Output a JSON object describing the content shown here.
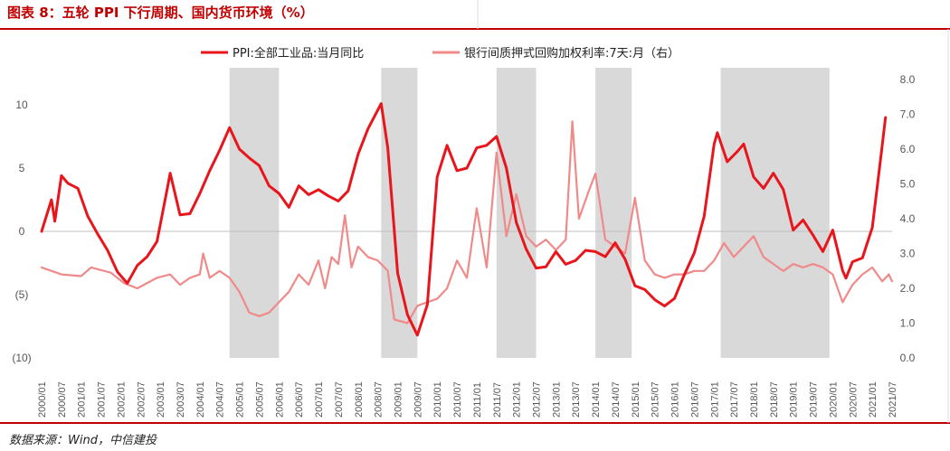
{
  "header": {
    "title": "图表 8：五轮 PPI 下行周期、国内货币环境（%）",
    "source": "数据来源：Wind，中信建投"
  },
  "colors": {
    "ppi": "#e8161c",
    "rate": "#f08a8a",
    "shade": "#d9d9d9",
    "divider": "#c00000",
    "negative_tick": "#c00000"
  },
  "chart_data": {
    "type": "line",
    "legend_position": "top-center",
    "grid": false,
    "x_tick_labels": [
      "2000/01",
      "2000/07",
      "2001/01",
      "2001/07",
      "2002/01",
      "2002/07",
      "2003/01",
      "2003/07",
      "2004/01",
      "2004/07",
      "2005/01",
      "2005/07",
      "2006/01",
      "2006/07",
      "2007/01",
      "2007/07",
      "2008/01",
      "2008/07",
      "2009/01",
      "2009/07",
      "2010/01",
      "2010/07",
      "2011/01",
      "2011/07",
      "2012/01",
      "2012/07",
      "2013/01",
      "2013/07",
      "2014/01",
      "2014/07",
      "2015/01",
      "2015/07",
      "2016/01",
      "2016/07",
      "2017/01",
      "2017/07",
      "2018/01",
      "2018/07",
      "2019/01",
      "2019/07",
      "2020/01",
      "2020/07",
      "2021/01",
      "2021/07"
    ],
    "left_axis": {
      "range": [
        -10,
        12
      ],
      "ticks": [
        {
          "value": 10,
          "label": "10",
          "negative": false
        },
        {
          "value": 5,
          "label": "5",
          "negative": false
        },
        {
          "value": 0,
          "label": "0",
          "negative": false
        },
        {
          "value": -5,
          "label": "(5)",
          "negative": true
        },
        {
          "value": -10,
          "label": "(10)",
          "negative": true
        }
      ]
    },
    "right_axis": {
      "range": [
        0,
        8
      ],
      "ticks": [
        {
          "value": 8,
          "label": "8.0"
        },
        {
          "value": 7,
          "label": "7.0"
        },
        {
          "value": 6,
          "label": "6.0"
        },
        {
          "value": 5,
          "label": "5.0"
        },
        {
          "value": 4,
          "label": "4.0"
        },
        {
          "value": 3,
          "label": "3.0"
        },
        {
          "value": 2,
          "label": "2.0"
        },
        {
          "value": 1,
          "label": "1.0"
        },
        {
          "value": 0,
          "label": "0.0"
        }
      ]
    },
    "shaded_periods": [
      {
        "start": "2004/10",
        "end": "2006/01"
      },
      {
        "start": "2008/08",
        "end": "2009/07"
      },
      {
        "start": "2011/07",
        "end": "2012/07"
      },
      {
        "start": "2014/01",
        "end": "2014/12"
      },
      {
        "start": "2017/03",
        "end": "2019/12"
      }
    ],
    "series": [
      {
        "name": "PPI:全部工业品:当月同比",
        "axis": "left",
        "color_key": "ppi",
        "points": [
          [
            "2000/01",
            0
          ],
          [
            "2000/04",
            2.5
          ],
          [
            "2000/05",
            0.8
          ],
          [
            "2000/07",
            4.4
          ],
          [
            "2000/09",
            3.8
          ],
          [
            "2000/12",
            3.4
          ],
          [
            "2001/03",
            1.2
          ],
          [
            "2001/06",
            -0.2
          ],
          [
            "2001/09",
            -1.5
          ],
          [
            "2001/12",
            -3.2
          ],
          [
            "2002/03",
            -4.1
          ],
          [
            "2002/06",
            -2.7
          ],
          [
            "2002/09",
            -2.0
          ],
          [
            "2002/12",
            -0.8
          ],
          [
            "2003/03",
            3.2
          ],
          [
            "2003/04",
            4.6
          ],
          [
            "2003/07",
            1.3
          ],
          [
            "2003/10",
            1.4
          ],
          [
            "2004/01",
            3.0
          ],
          [
            "2004/04",
            4.8
          ],
          [
            "2004/07",
            6.4
          ],
          [
            "2004/10",
            8.2
          ],
          [
            "2005/01",
            6.5
          ],
          [
            "2005/04",
            5.8
          ],
          [
            "2005/07",
            5.2
          ],
          [
            "2005/10",
            3.6
          ],
          [
            "2006/01",
            3.0
          ],
          [
            "2006/04",
            1.9
          ],
          [
            "2006/07",
            3.6
          ],
          [
            "2006/10",
            2.9
          ],
          [
            "2007/01",
            3.3
          ],
          [
            "2007/04",
            2.8
          ],
          [
            "2007/07",
            2.4
          ],
          [
            "2007/10",
            3.2
          ],
          [
            "2008/01",
            6.1
          ],
          [
            "2008/04",
            8.1
          ],
          [
            "2008/08",
            10.1
          ],
          [
            "2008/10",
            6.6
          ],
          [
            "2009/01",
            -3.3
          ],
          [
            "2009/04",
            -6.6
          ],
          [
            "2009/07",
            -8.2
          ],
          [
            "2009/10",
            -5.8
          ],
          [
            "2010/01",
            4.3
          ],
          [
            "2010/04",
            6.8
          ],
          [
            "2010/07",
            4.8
          ],
          [
            "2010/10",
            5.0
          ],
          [
            "2011/01",
            6.6
          ],
          [
            "2011/04",
            6.8
          ],
          [
            "2011/07",
            7.5
          ],
          [
            "2011/10",
            5.0
          ],
          [
            "2012/01",
            0.7
          ],
          [
            "2012/04",
            -1.4
          ],
          [
            "2012/07",
            -2.9
          ],
          [
            "2012/10",
            -2.8
          ],
          [
            "2013/01",
            -1.6
          ],
          [
            "2013/04",
            -2.6
          ],
          [
            "2013/07",
            -2.3
          ],
          [
            "2013/10",
            -1.5
          ],
          [
            "2014/01",
            -1.6
          ],
          [
            "2014/04",
            -2.0
          ],
          [
            "2014/07",
            -0.9
          ],
          [
            "2014/10",
            -2.2
          ],
          [
            "2015/01",
            -4.3
          ],
          [
            "2015/04",
            -4.6
          ],
          [
            "2015/07",
            -5.4
          ],
          [
            "2015/10",
            -5.9
          ],
          [
            "2016/01",
            -5.3
          ],
          [
            "2016/04",
            -3.4
          ],
          [
            "2016/07",
            -1.7
          ],
          [
            "2016/10",
            1.2
          ],
          [
            "2017/01",
            6.9
          ],
          [
            "2017/02",
            7.8
          ],
          [
            "2017/05",
            5.5
          ],
          [
            "2017/08",
            6.3
          ],
          [
            "2017/10",
            6.9
          ],
          [
            "2018/01",
            4.3
          ],
          [
            "2018/04",
            3.4
          ],
          [
            "2018/07",
            4.6
          ],
          [
            "2018/10",
            3.3
          ],
          [
            "2019/01",
            0.1
          ],
          [
            "2019/04",
            0.9
          ],
          [
            "2019/07",
            -0.3
          ],
          [
            "2019/10",
            -1.6
          ],
          [
            "2020/01",
            0.1
          ],
          [
            "2020/04",
            -3.1
          ],
          [
            "2020/05",
            -3.7
          ],
          [
            "2020/07",
            -2.4
          ],
          [
            "2020/10",
            -2.1
          ],
          [
            "2021/01",
            0.3
          ],
          [
            "2021/04",
            6.8
          ],
          [
            "2021/05",
            9.0
          ]
        ]
      },
      {
        "name": "银行间质押式回购加权利率:7天:月（右）",
        "axis": "right",
        "color_key": "rate",
        "points": [
          [
            "2000/01",
            2.6
          ],
          [
            "2000/07",
            2.4
          ],
          [
            "2001/01",
            2.35
          ],
          [
            "2001/04",
            2.6
          ],
          [
            "2001/10",
            2.45
          ],
          [
            "2002/02",
            2.15
          ],
          [
            "2002/06",
            2.0
          ],
          [
            "2002/12",
            2.3
          ],
          [
            "2003/04",
            2.4
          ],
          [
            "2003/07",
            2.1
          ],
          [
            "2003/10",
            2.3
          ],
          [
            "2004/01",
            2.4
          ],
          [
            "2004/02",
            3.0
          ],
          [
            "2004/04",
            2.3
          ],
          [
            "2004/07",
            2.5
          ],
          [
            "2004/10",
            2.3
          ],
          [
            "2005/01",
            1.9
          ],
          [
            "2005/04",
            1.3
          ],
          [
            "2005/07",
            1.2
          ],
          [
            "2005/10",
            1.3
          ],
          [
            "2006/01",
            1.6
          ],
          [
            "2006/04",
            1.9
          ],
          [
            "2006/07",
            2.4
          ],
          [
            "2006/10",
            2.1
          ],
          [
            "2007/01",
            2.8
          ],
          [
            "2007/03",
            2.0
          ],
          [
            "2007/05",
            2.9
          ],
          [
            "2007/07",
            2.7
          ],
          [
            "2007/09",
            4.1
          ],
          [
            "2007/11",
            2.6
          ],
          [
            "2008/01",
            3.2
          ],
          [
            "2008/04",
            2.9
          ],
          [
            "2008/07",
            2.8
          ],
          [
            "2008/10",
            2.5
          ],
          [
            "2008/12",
            1.1
          ],
          [
            "2009/04",
            1.0
          ],
          [
            "2009/07",
            1.5
          ],
          [
            "2009/10",
            1.6
          ],
          [
            "2010/01",
            1.7
          ],
          [
            "2010/04",
            2.0
          ],
          [
            "2010/07",
            2.8
          ],
          [
            "2010/10",
            2.3
          ],
          [
            "2011/01",
            4.3
          ],
          [
            "2011/04",
            2.6
          ],
          [
            "2011/07",
            5.9
          ],
          [
            "2011/10",
            3.5
          ],
          [
            "2012/01",
            4.7
          ],
          [
            "2012/04",
            3.5
          ],
          [
            "2012/07",
            3.2
          ],
          [
            "2012/10",
            3.4
          ],
          [
            "2013/01",
            3.1
          ],
          [
            "2013/04",
            3.4
          ],
          [
            "2013/06",
            6.8
          ],
          [
            "2013/08",
            4.0
          ],
          [
            "2013/11",
            4.8
          ],
          [
            "2014/01",
            5.3
          ],
          [
            "2014/04",
            3.4
          ],
          [
            "2014/07",
            3.2
          ],
          [
            "2014/10",
            3.0
          ],
          [
            "2015/01",
            4.6
          ],
          [
            "2015/04",
            2.8
          ],
          [
            "2015/07",
            2.4
          ],
          [
            "2015/10",
            2.3
          ],
          [
            "2016/01",
            2.4
          ],
          [
            "2016/04",
            2.4
          ],
          [
            "2016/07",
            2.5
          ],
          [
            "2016/10",
            2.5
          ],
          [
            "2017/01",
            2.8
          ],
          [
            "2017/04",
            3.3
          ],
          [
            "2017/07",
            2.9
          ],
          [
            "2017/10",
            3.2
          ],
          [
            "2018/01",
            3.5
          ],
          [
            "2018/04",
            2.9
          ],
          [
            "2018/07",
            2.7
          ],
          [
            "2018/10",
            2.5
          ],
          [
            "2019/01",
            2.7
          ],
          [
            "2019/04",
            2.6
          ],
          [
            "2019/07",
            2.7
          ],
          [
            "2019/10",
            2.6
          ],
          [
            "2020/01",
            2.4
          ],
          [
            "2020/04",
            1.6
          ],
          [
            "2020/07",
            2.1
          ],
          [
            "2020/10",
            2.4
          ],
          [
            "2021/01",
            2.6
          ],
          [
            "2021/04",
            2.2
          ],
          [
            "2021/06",
            2.4
          ],
          [
            "2021/07",
            2.2
          ]
        ]
      }
    ]
  }
}
